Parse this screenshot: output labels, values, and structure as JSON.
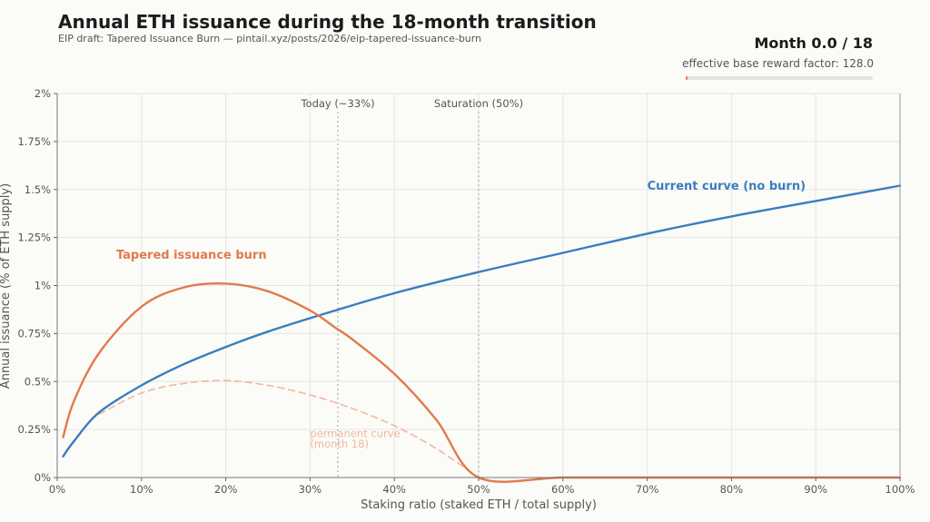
{
  "header": {
    "title": "Annual ETH issuance during the 18-month transition",
    "subtitle": "EIP draft: Tapered Issuance Burn — pintail.xyz/posts/2026/eip-tapered-issuance-burn",
    "month_readout": "Month 0.0 / 18",
    "factor_label": "effective base reward factor: 128.0",
    "transition_progress": 0.0
  },
  "colors": {
    "current": "#3a7dbf",
    "tapered": "#e07b4c",
    "permanent": "#f0b89a",
    "grid": "#e6e6e6",
    "axis_text": "#555555",
    "marker_line": "#9aa4b4"
  },
  "chart_data": {
    "type": "line",
    "xlabel": "Staking ratio (staked ETH / total supply)",
    "ylabel": "Annual issuance (% of ETH supply)",
    "xlim": [
      0,
      100
    ],
    "ylim": [
      0,
      2
    ],
    "x_ticks": [
      0,
      10,
      20,
      30,
      40,
      50,
      60,
      70,
      80,
      90,
      100
    ],
    "x_tick_labels": [
      "0%",
      "10%",
      "20%",
      "30%",
      "40%",
      "50%",
      "60%",
      "70%",
      "80%",
      "90%",
      "100%"
    ],
    "y_ticks": [
      0,
      0.25,
      0.5,
      0.75,
      1,
      1.25,
      1.5,
      1.75,
      2
    ],
    "y_tick_labels": [
      "0%",
      "0.25%",
      "0.5%",
      "0.75%",
      "1%",
      "1.25%",
      "1.5%",
      "1.75%",
      "2%"
    ],
    "grid": true,
    "series": [
      {
        "name": "Current curve (no burn)",
        "style": "solid",
        "x": [
          0.7,
          2,
          5,
          10,
          15,
          20,
          25,
          30,
          33,
          40,
          50,
          60,
          70,
          80,
          90,
          100
        ],
        "y": [
          0.11,
          0.19,
          0.34,
          0.48,
          0.59,
          0.68,
          0.76,
          0.83,
          0.87,
          0.96,
          1.07,
          1.17,
          1.27,
          1.36,
          1.44,
          1.52
        ]
      },
      {
        "name": "Tapered issuance burn",
        "style": "solid",
        "x": [
          0.7,
          2,
          5,
          10,
          15,
          20,
          25,
          30,
          33,
          35,
          40,
          45,
          50,
          60,
          70,
          80,
          90,
          100
        ],
        "y": [
          0.21,
          0.4,
          0.65,
          0.89,
          0.99,
          1.01,
          0.97,
          0.87,
          0.78,
          0.72,
          0.54,
          0.3,
          0.0,
          0.0,
          0.0,
          0.0,
          0.0,
          0.0
        ]
      },
      {
        "name": "permanent curve (month 18)",
        "style": "dashed",
        "x": [
          5,
          10,
          15,
          20,
          25,
          30,
          35,
          40,
          45,
          50
        ],
        "y": [
          0.33,
          0.44,
          0.49,
          0.505,
          0.48,
          0.43,
          0.36,
          0.27,
          0.15,
          0.0
        ]
      }
    ],
    "annotations": [
      {
        "text": "Today (~33%)",
        "x": 33.3,
        "kind": "vline"
      },
      {
        "text": "Saturation (50%)",
        "x": 50,
        "kind": "vline"
      },
      {
        "text": "Current curve (no burn)",
        "kind": "series-label",
        "series": 0,
        "at_x": 70,
        "at_y": 1.5
      },
      {
        "text": "Tapered issuance burn",
        "kind": "series-label",
        "series": 1,
        "at_x": 7,
        "at_y": 1.14
      },
      {
        "text": "permanent curve",
        "kind": "series-label",
        "series": 2,
        "at_x": 30,
        "at_y": 0.21
      },
      {
        "text": "(month 18)",
        "kind": "series-label",
        "series": 2,
        "at_x": 30,
        "at_y": 0.155
      }
    ]
  }
}
